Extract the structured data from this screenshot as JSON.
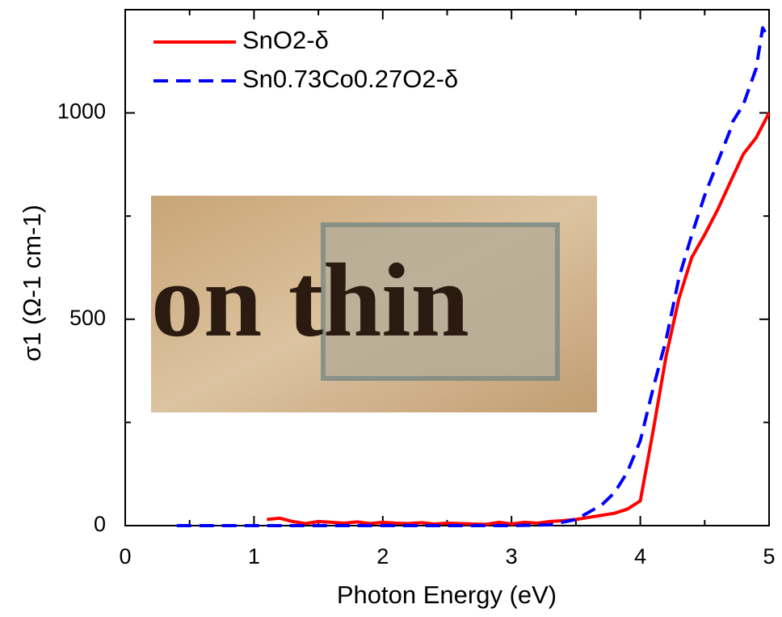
{
  "chart_data": {
    "type": "line",
    "xlabel": "Photon Energy (eV)",
    "ylabel": "σ1 (Ω-1 cm-1)",
    "xlim": [
      0,
      5
    ],
    "ylim": [
      0,
      1250
    ],
    "xticks": [
      0,
      1,
      2,
      3,
      4,
      5
    ],
    "yticks": [
      0,
      500,
      1000
    ],
    "xminorticks": [
      0.5,
      1.5,
      2.5,
      3.5,
      4.5
    ],
    "yminorticks": [
      250,
      750
    ],
    "legend": "top-left",
    "inset_text": "on thin",
    "series": [
      {
        "name": "SnO2-δ",
        "color": "#ff0000",
        "dash": false,
        "x": [
          1.1,
          1.2,
          1.3,
          1.4,
          1.5,
          1.6,
          1.7,
          1.8,
          1.9,
          2.0,
          2.1,
          2.2,
          2.3,
          2.4,
          2.5,
          2.6,
          2.7,
          2.8,
          2.9,
          3.0,
          3.1,
          3.2,
          3.3,
          3.4,
          3.5,
          3.6,
          3.7,
          3.8,
          3.9,
          4.0,
          4.1,
          4.2,
          4.3,
          4.4,
          4.5,
          4.6,
          4.7,
          4.8,
          4.9,
          5.0
        ],
        "values": [
          15,
          18,
          10,
          5,
          10,
          8,
          6,
          9,
          5,
          8,
          6,
          5,
          7,
          4,
          6,
          5,
          4,
          3,
          8,
          4,
          8,
          6,
          10,
          12,
          15,
          20,
          25,
          30,
          40,
          60,
          230,
          410,
          550,
          650,
          705,
          765,
          833,
          900,
          940,
          1000
        ]
      },
      {
        "name": "Sn0.73Co0.27O2-δ",
        "color": "#0000ff",
        "dash": true,
        "x": [
          0.4,
          1.0,
          2.0,
          3.0,
          3.3,
          3.5,
          3.7,
          3.8,
          3.9,
          4.0,
          4.1,
          4.2,
          4.3,
          4.4,
          4.5,
          4.6,
          4.7,
          4.72,
          4.8,
          4.9,
          4.95,
          5.0
        ],
        "values": [
          0,
          0,
          0,
          0,
          2,
          15,
          50,
          80,
          130,
          206,
          333,
          450,
          600,
          705,
          800,
          880,
          960,
          980,
          1020,
          1108,
          1206,
          1180
        ]
      }
    ]
  }
}
